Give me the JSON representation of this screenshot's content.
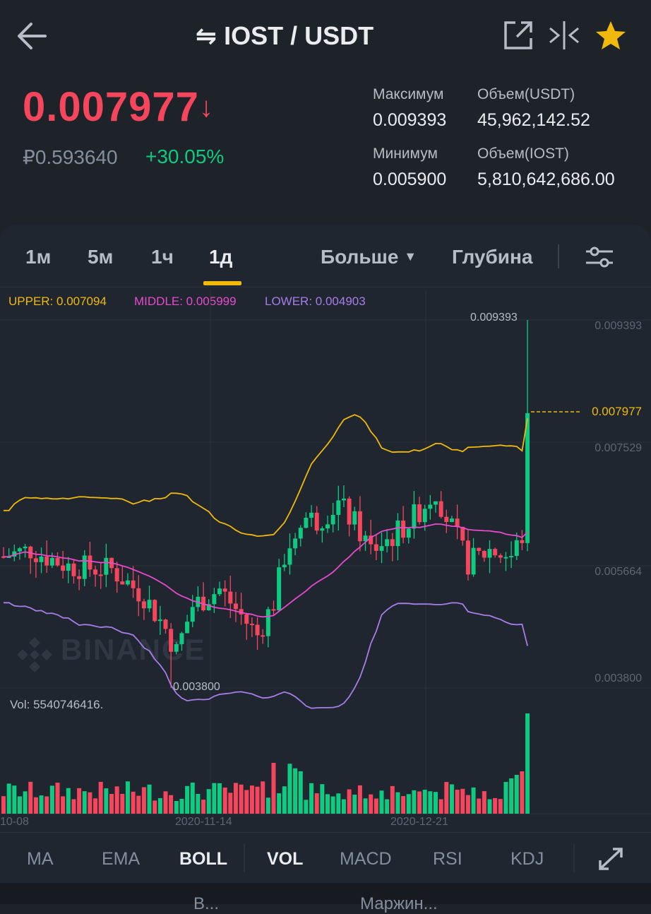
{
  "header": {
    "pair": "IOST / USDT"
  },
  "ticker": {
    "last_price": "0.007977",
    "rub_price": "₽0.593640",
    "change_pct": "+30.05%",
    "high_label": "Максимум",
    "high_value": "0.009393",
    "low_label": "Минимум",
    "low_value": "0.005900",
    "vol_quote_label": "Объем(USDT)",
    "vol_quote_value": "45,962,142.52",
    "vol_base_label": "Объем(IOST)",
    "vol_base_value": "5,810,642,686.00"
  },
  "intervals": {
    "tabs": [
      "1м",
      "5м",
      "1ч",
      "1д"
    ],
    "active": "1д",
    "more": "Больше",
    "depth": "Глубина"
  },
  "boll": {
    "upper": "UPPER: 0.007094",
    "middle": "MIDDLE: 0.005999",
    "lower": "LOWER: 0.004903"
  },
  "axis": {
    "y_ticks": [
      "0.009393",
      "0.007529",
      "0.005664",
      "0.003800"
    ],
    "current": "0.007977",
    "high_marker": "0.009393",
    "low_marker": "0.003800",
    "dates": [
      "10-08",
      "2020-11-14",
      "2020-12-21"
    ]
  },
  "volume": {
    "label": "Vol: 5540746416."
  },
  "watermark": "BINANCE",
  "indicators": {
    "items": [
      "MA",
      "EMA",
      "BOLL",
      "VOL",
      "MACD",
      "RSI",
      "KDJ"
    ]
  },
  "footer": {
    "label_1": "В...",
    "label_2": "Маржин..."
  },
  "colors": {
    "up": "#0ecb81",
    "down": "#f6465d",
    "upper": "#f0b90b",
    "middle": "#e84acb",
    "lower": "#a77de8"
  },
  "chart_data": {
    "type": "candlestick",
    "ylim": [
      0.0038,
      0.009393
    ],
    "series": [
      {
        "name": "UPPER",
        "value": 0.007094
      },
      {
        "name": "MIDDLE",
        "value": 0.005999
      },
      {
        "name": "LOWER",
        "value": 0.004903
      }
    ],
    "high": 0.009393,
    "low": 0.0038,
    "last": 0.007977,
    "x_ticks": [
      "10-08",
      "2020-11-14",
      "2020-12-21"
    ]
  }
}
